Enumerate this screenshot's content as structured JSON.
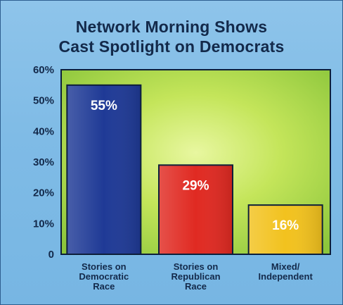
{
  "chart_data": {
    "type": "bar",
    "title_lines": [
      "Network Morning Shows",
      "Cast Spotlight on Democrats"
    ],
    "categories": [
      [
        "Stories on",
        "Democratic",
        "Race"
      ],
      [
        "Stories on",
        "Republican",
        "Race"
      ],
      [
        "Mixed/",
        "Independent"
      ]
    ],
    "values": [
      55,
      29,
      16
    ],
    "data_labels": [
      "55%",
      "29%",
      "16%"
    ],
    "colors": [
      "#1f3a96",
      "#e02a22",
      "#f2c21e"
    ],
    "label_colors": [
      "#ffffff",
      "#ffffff",
      "#ffffff"
    ],
    "yticks": [
      "0",
      "10%",
      "20%",
      "30%",
      "40%",
      "50%",
      "60%"
    ],
    "ylim": [
      0,
      60
    ],
    "grid": false,
    "plot_background": "#b8e04a"
  }
}
